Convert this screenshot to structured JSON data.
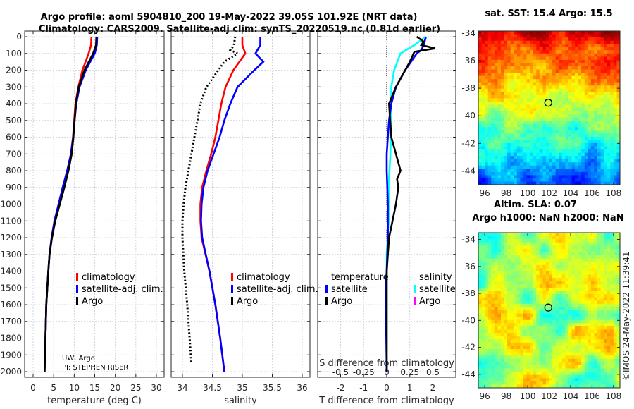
{
  "title": {
    "line1": "Argo profile: aoml 5904810_200 19-May-2022 39.05S 101.92E (NRT data)",
    "line2": "Climatology: CARS2009. Satellite-adj clim: synTS_20220519.nc (0.81d earlier)"
  },
  "credit": {
    "line1": "UW, Argo",
    "line2": "PI: STEPHEN RISER"
  },
  "timestamp": "©IMOS 24-May-2022 11:39:41",
  "colors": {
    "climatology": "#ff0000",
    "satellite": "#0000ff",
    "argo": "#000000",
    "sal_satellite": "#00ffff",
    "sal_argo": "#ff00ff"
  },
  "chart_data": [
    {
      "type": "line",
      "xlabel": "temperature (deg C)",
      "ylabel": "depth",
      "xlim": [
        -2,
        32
      ],
      "ylim": [
        2050,
        0
      ],
      "xticks": [
        "0",
        "5",
        "10",
        "15",
        "20",
        "25",
        "30"
      ],
      "yticks": [
        "0",
        "100",
        "200",
        "300",
        "400",
        "500",
        "600",
        "700",
        "800",
        "900",
        "1000",
        "1100",
        "1200",
        "1300",
        "1400",
        "1500",
        "1600",
        "1700",
        "1800",
        "1900",
        "2000"
      ],
      "legend": [
        "climatology",
        "satellite-adj. clim.",
        "Argo"
      ],
      "series": [
        {
          "name": "climatology",
          "depth": [
            0,
            50,
            100,
            200,
            300,
            400,
            500,
            600,
            700,
            800,
            900,
            1000,
            1100,
            1200,
            1300,
            1400,
            1600,
            1800,
            2000
          ],
          "values": [
            14.2,
            14.1,
            13.5,
            12.0,
            11.0,
            10.3,
            10.0,
            9.7,
            9.2,
            8.3,
            7.2,
            6.2,
            5.2,
            4.5,
            4.0,
            3.7,
            3.2,
            3.0,
            2.8
          ]
        },
        {
          "name": "satellite-adj. clim.",
          "depth": [
            0,
            50,
            100,
            200,
            300,
            400,
            500,
            600,
            700,
            800,
            900,
            1000,
            1100,
            1200,
            1300,
            1400,
            1600,
            1800,
            2000
          ],
          "values": [
            15.6,
            15.5,
            15.0,
            12.8,
            11.3,
            10.5,
            10.1,
            9.75,
            9.2,
            8.3,
            7.2,
            6.2,
            5.2,
            4.5,
            4.0,
            3.7,
            3.2,
            3.0,
            2.8
          ]
        },
        {
          "name": "Argo",
          "depth": [
            0,
            50,
            100,
            200,
            300,
            400,
            500,
            600,
            700,
            800,
            900,
            1000,
            1100,
            1200,
            1300,
            1400,
            1600,
            1800,
            2000
          ],
          "values": [
            15.4,
            15.3,
            14.6,
            12.5,
            11.1,
            10.4,
            10.1,
            9.8,
            9.4,
            8.6,
            7.6,
            6.5,
            5.4,
            4.6,
            4.0,
            3.7,
            3.2,
            3.0,
            2.8
          ]
        }
      ]
    },
    {
      "type": "line",
      "xlabel": "salinity",
      "xlim": [
        33.8,
        36.15
      ],
      "ylim": [
        2050,
        0
      ],
      "xticks": [
        "34",
        "34.5",
        "35",
        "35.5",
        "36"
      ],
      "legend": [
        "climatology",
        "satellite-adj. clim.",
        "Argo"
      ],
      "series": [
        {
          "name": "climatology",
          "depth": [
            0,
            50,
            100,
            150,
            200,
            300,
            400,
            500,
            600,
            700,
            800,
            900,
            1000,
            1100,
            1200,
            1400,
            1600,
            1800,
            2000
          ],
          "values": [
            35.0,
            35.0,
            35.05,
            34.95,
            34.85,
            34.72,
            34.65,
            34.6,
            34.55,
            34.48,
            34.4,
            34.33,
            34.3,
            34.3,
            34.32,
            34.45,
            34.55,
            34.63,
            34.7
          ]
        },
        {
          "name": "satellite-adj. clim.",
          "depth": [
            0,
            50,
            100,
            150,
            200,
            300,
            400,
            500,
            600,
            700,
            800,
            900,
            1000,
            1100,
            1200,
            1400,
            1600,
            1800,
            2000
          ],
          "values": [
            35.3,
            35.3,
            35.22,
            35.35,
            35.2,
            34.92,
            34.8,
            34.7,
            34.62,
            34.52,
            34.42,
            34.35,
            34.32,
            34.31,
            34.33,
            34.45,
            34.55,
            34.63,
            34.7
          ]
        },
        {
          "name": "Argo",
          "depth": [
            0,
            50,
            80,
            100,
            150,
            200,
            300,
            400,
            500,
            600,
            700,
            800,
            900,
            1000,
            1100,
            1200,
            1400,
            1600,
            1800,
            1950
          ],
          "values": [
            34.88,
            34.86,
            34.8,
            34.92,
            34.7,
            34.6,
            34.4,
            34.3,
            34.25,
            34.2,
            34.15,
            34.1,
            34.05,
            34.02,
            34.0,
            34.0,
            34.03,
            34.08,
            34.12,
            34.15
          ]
        }
      ]
    },
    {
      "type": "line",
      "xlabel": "T difference from climatology",
      "xlabel2": "S difference from climatology",
      "xlim": [
        -3,
        3
      ],
      "ylim": [
        2050,
        0
      ],
      "xticks": [
        "-2",
        "-1",
        "0",
        "1",
        "2"
      ],
      "xticks2": [
        "-0.5",
        "-0.25",
        "0",
        "0.25",
        "0.5"
      ],
      "legend_temperature": {
        "title": "temperature",
        "items": [
          "satellite",
          "Argo"
        ]
      },
      "legend_salinity": {
        "title": "salinity",
        "items": [
          "satellite",
          "Argo"
        ]
      },
      "series": [
        {
          "name": "T satellite",
          "unit": "T",
          "depth": [
            0,
            50,
            80,
            100,
            200,
            300,
            400,
            500,
            600,
            700,
            800,
            1000,
            1200,
            1400,
            1500,
            2000
          ],
          "values": [
            1.7,
            1.6,
            1.5,
            1.3,
            0.8,
            0.4,
            0.2,
            0.1,
            0.05,
            0.0,
            0.0,
            0.05,
            0.05,
            0.0,
            -0.05,
            0.0
          ]
        },
        {
          "name": "T Argo",
          "unit": "T",
          "depth": [
            0,
            30,
            50,
            70,
            90,
            150,
            200,
            300,
            400,
            500,
            600,
            700,
            800,
            850,
            900,
            1000,
            1100,
            1200,
            1300,
            1400,
            2000
          ],
          "values": [
            1.3,
            1.6,
            1.5,
            2.1,
            1.2,
            1.0,
            0.8,
            0.4,
            0.1,
            0.15,
            0.2,
            0.4,
            0.6,
            0.45,
            0.5,
            0.4,
            0.25,
            0.1,
            0.05,
            0.0,
            0.0
          ]
        },
        {
          "name": "S satellite",
          "unit": "S",
          "depth": [
            0,
            50,
            100,
            200,
            300,
            500,
            700,
            900,
            1100,
            1300,
            2000
          ],
          "values": [
            0.42,
            0.3,
            0.15,
            0.08,
            0.05,
            0.05,
            0.04,
            0.02,
            0.02,
            0.0,
            0.0
          ]
        }
      ]
    },
    {
      "type": "heatmap",
      "title": "sat. SST: 15.4 Argo: 15.5",
      "xticks": [
        "96",
        "98",
        "100",
        "102",
        "104",
        "106",
        "108"
      ],
      "yticks": [
        "-34",
        "-36",
        "-38",
        "-40",
        "-42",
        "-44"
      ],
      "xlim": [
        95.4,
        108.6
      ],
      "ylim": [
        -45.0,
        -33.85
      ],
      "argo_position": {
        "lon": 101.92,
        "lat": -39.05
      }
    },
    {
      "type": "heatmap",
      "title": "Altim. SLA: 0.07",
      "subtitle": "Argo h1000: NaN h2000: NaN",
      "xticks": [
        "96",
        "98",
        "100",
        "102",
        "104",
        "106",
        "108"
      ],
      "yticks": [
        "-34",
        "-36",
        "-38",
        "-40",
        "-42",
        "-44"
      ],
      "xlim": [
        95.4,
        108.6
      ],
      "ylim": [
        -45.0,
        -33.5
      ],
      "argo_position": {
        "lon": 101.92,
        "lat": -39.05
      }
    }
  ]
}
